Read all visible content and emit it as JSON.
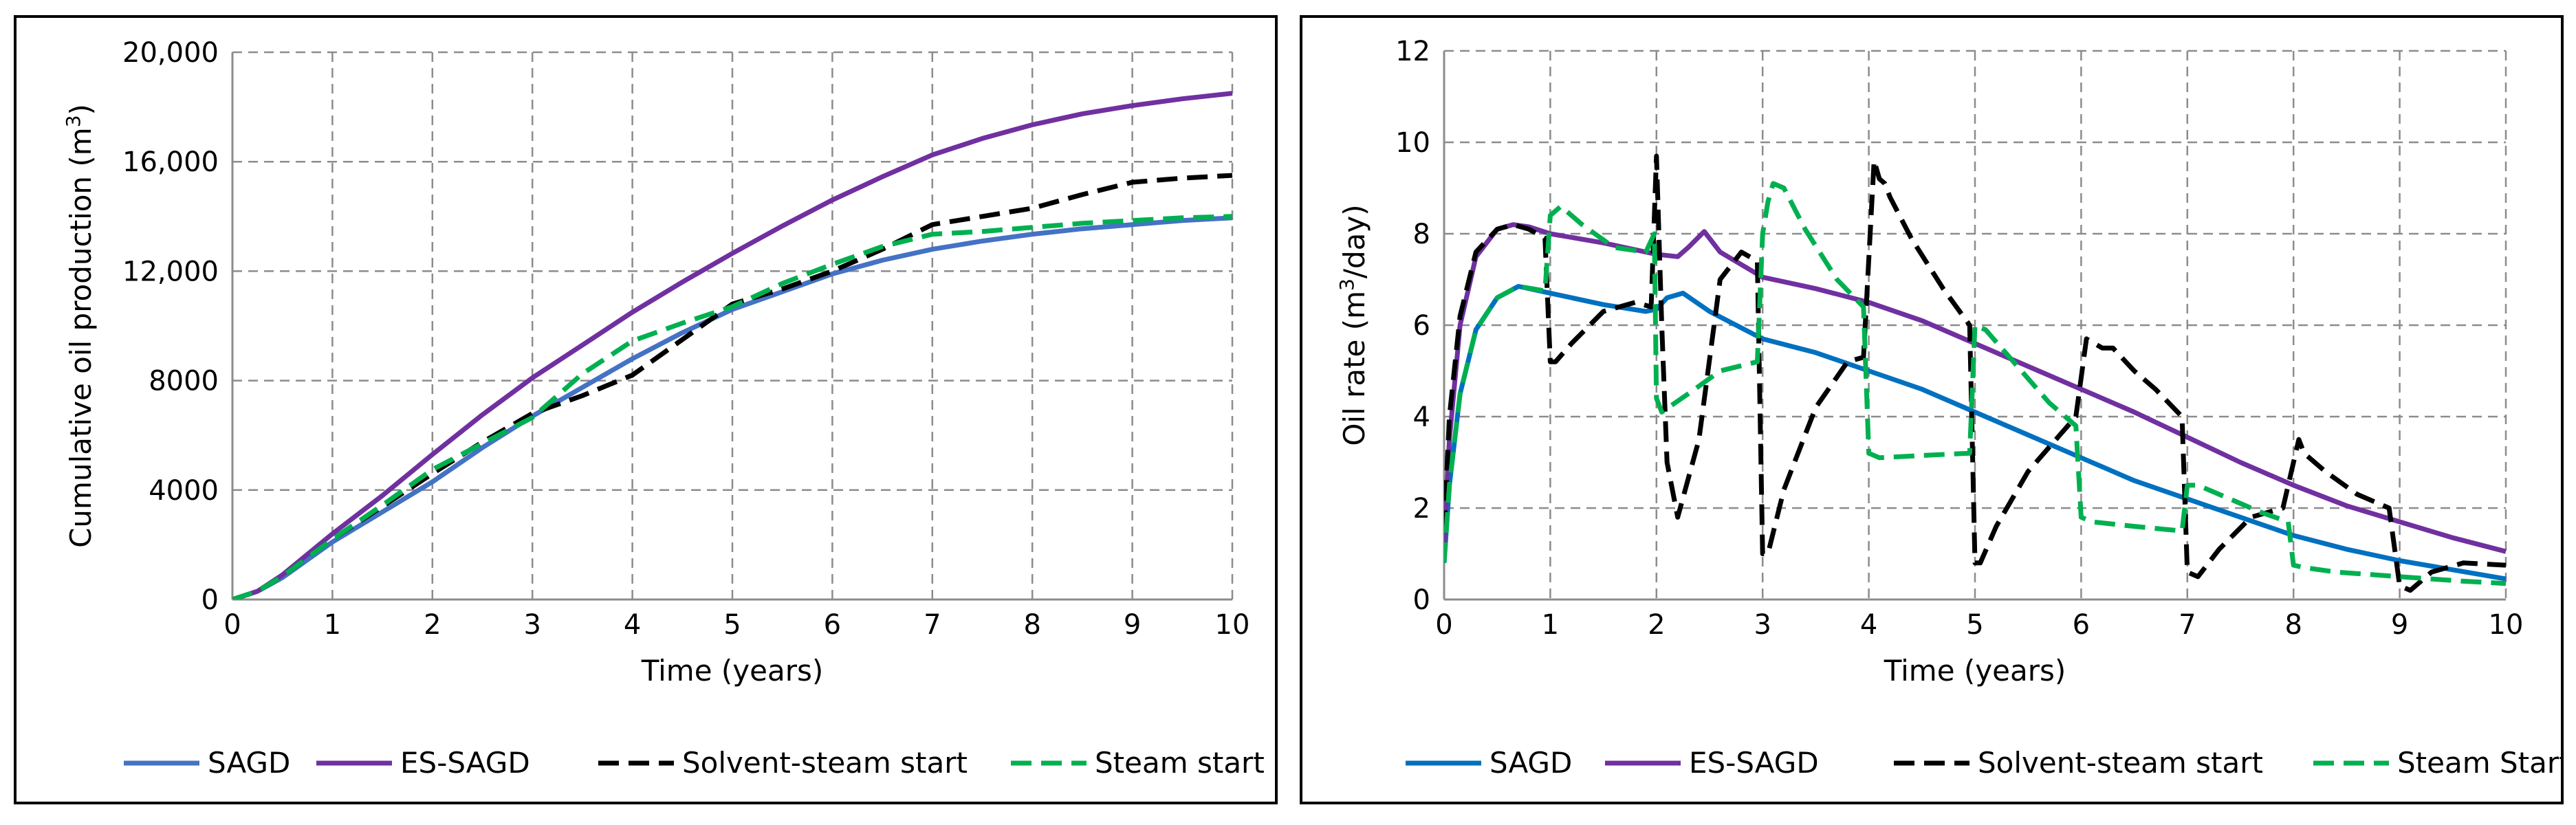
{
  "chart_data": [
    {
      "type": "line",
      "xlabel": "Time (years)",
      "ylabel": "Cumulative oil production (m",
      "ylabel_sup": "3",
      "ylabel_tail": ")",
      "xlim": [
        0,
        10
      ],
      "ylim": [
        0,
        20000
      ],
      "x_ticks": [
        "0",
        "1",
        "2",
        "3",
        "4",
        "5",
        "6",
        "7",
        "8",
        "9",
        "10"
      ],
      "y_ticks": [
        "0",
        "4000",
        "8000",
        "12,000",
        "16,000",
        "20,000"
      ],
      "series": [
        {
          "name": "SAGD",
          "color": "#4472C4",
          "dash": "solid",
          "x": [
            0,
            0.25,
            0.5,
            1,
            1.5,
            2,
            2.5,
            3,
            3.5,
            4,
            4.5,
            5,
            5.5,
            6,
            6.5,
            7,
            7.5,
            8,
            8.5,
            9,
            9.5,
            10
          ],
          "y": [
            0,
            300,
            800,
            2100,
            3200,
            4300,
            5550,
            6700,
            7750,
            8800,
            9750,
            10600,
            11250,
            11900,
            12400,
            12800,
            13100,
            13350,
            13550,
            13700,
            13850,
            13950
          ]
        },
        {
          "name": "ES-SAGD",
          "color": "#7030A0",
          "dash": "solid",
          "x": [
            0,
            0.25,
            0.5,
            1,
            1.5,
            2,
            2.5,
            3,
            3.5,
            4,
            4.5,
            5,
            5.5,
            6,
            6.5,
            7,
            7.5,
            8,
            8.5,
            9,
            9.5,
            10
          ],
          "y": [
            0,
            300,
            900,
            2400,
            3800,
            5300,
            6750,
            8100,
            9300,
            10500,
            11600,
            12650,
            13650,
            14600,
            15450,
            16250,
            16850,
            17350,
            17750,
            18050,
            18300,
            18500
          ]
        },
        {
          "name": "Solvent-steam start",
          "color": "#000000",
          "dash": "long",
          "x": [
            0,
            0.25,
            0.5,
            1,
            1.5,
            2,
            2.5,
            3,
            3.5,
            4,
            4.5,
            5,
            5.5,
            6,
            6.5,
            7,
            7.5,
            8,
            8.5,
            9,
            9.5,
            10
          ],
          "y": [
            0,
            300,
            850,
            2200,
            3400,
            4600,
            5750,
            6800,
            7450,
            8200,
            9500,
            10800,
            11350,
            12000,
            12800,
            13700,
            14000,
            14300,
            14800,
            15250,
            15400,
            15500
          ]
        },
        {
          "name": "Steam start",
          "color": "#00B050",
          "dash": "long",
          "x": [
            0,
            0.25,
            0.5,
            1,
            1.5,
            2,
            2.5,
            3,
            3.5,
            4,
            4.5,
            5,
            5.5,
            6,
            6.5,
            7,
            7.5,
            8,
            8.5,
            9,
            9.5,
            10
          ],
          "y": [
            0,
            300,
            850,
            2200,
            3450,
            4750,
            5700,
            6650,
            8250,
            9450,
            10100,
            10700,
            11550,
            12250,
            12900,
            13350,
            13450,
            13600,
            13750,
            13850,
            13950,
            14000
          ]
        }
      ]
    },
    {
      "type": "line",
      "xlabel": "Time (years)",
      "ylabel": "Oil rate (m",
      "ylabel_sup": "3",
      "ylabel_tail": "/day)",
      "xlim": [
        0,
        10
      ],
      "ylim": [
        0,
        12
      ],
      "x_ticks": [
        "0",
        "1",
        "2",
        "3",
        "4",
        "5",
        "6",
        "7",
        "8",
        "9",
        "10"
      ],
      "y_ticks": [
        "0",
        "2",
        "4",
        "6",
        "8",
        "10",
        "12"
      ],
      "series": [
        {
          "name": "SAGD",
          "color": "#0070C0",
          "dash": "solid",
          "x": [
            0,
            0.05,
            0.15,
            0.3,
            0.5,
            0.7,
            1.0,
            1.5,
            1.9,
            2.0,
            2.1,
            2.25,
            2.5,
            3.0,
            3.5,
            4.0,
            4.5,
            5.0,
            5.5,
            6.0,
            6.5,
            7.0,
            7.5,
            8.0,
            8.5,
            9.0,
            9.5,
            10.0
          ],
          "y": [
            0.8,
            2.5,
            4.5,
            5.9,
            6.6,
            6.85,
            6.7,
            6.45,
            6.3,
            6.35,
            6.6,
            6.7,
            6.3,
            5.7,
            5.4,
            5.0,
            4.6,
            4.1,
            3.6,
            3.1,
            2.6,
            2.2,
            1.8,
            1.4,
            1.1,
            0.85,
            0.65,
            0.45
          ]
        },
        {
          "name": "ES-SAGD",
          "color": "#7030A0",
          "dash": "solid",
          "x": [
            0,
            0.05,
            0.15,
            0.3,
            0.5,
            0.65,
            0.8,
            1.0,
            1.5,
            2.0,
            2.2,
            2.3,
            2.45,
            2.6,
            3.0,
            3.5,
            4.0,
            4.5,
            5.0,
            5.5,
            6.0,
            6.5,
            7.0,
            7.5,
            8.0,
            8.5,
            9.0,
            9.5,
            10.0
          ],
          "y": [
            1.2,
            3.5,
            6.0,
            7.5,
            8.1,
            8.2,
            8.15,
            8.0,
            7.8,
            7.55,
            7.5,
            7.7,
            8.05,
            7.6,
            7.05,
            6.8,
            6.5,
            6.1,
            5.6,
            5.1,
            4.6,
            4.1,
            3.55,
            3.0,
            2.5,
            2.05,
            1.7,
            1.35,
            1.05
          ]
        },
        {
          "name": "Solvent-steam start",
          "color": "#000000",
          "dash": "long",
          "x": [
            0,
            0.05,
            0.15,
            0.3,
            0.5,
            0.65,
            0.8,
            0.95,
            1.0,
            1.05,
            1.2,
            1.5,
            1.8,
            1.95,
            2.0,
            2.05,
            2.1,
            2.2,
            2.4,
            2.6,
            2.8,
            2.95,
            3.0,
            3.05,
            3.2,
            3.5,
            3.8,
            3.95,
            4.05,
            4.1,
            4.15,
            4.2,
            4.4,
            4.7,
            4.95,
            5.0,
            5.05,
            5.2,
            5.5,
            5.8,
            5.95,
            6.05,
            6.2,
            6.3,
            6.5,
            6.7,
            6.95,
            7.0,
            7.1,
            7.3,
            7.6,
            7.9,
            8.0,
            8.05,
            8.1,
            8.3,
            8.6,
            8.9,
            9.0,
            9.1,
            9.3,
            9.6,
            10.0
          ],
          "y": [
            1.5,
            4.0,
            6.2,
            7.6,
            8.1,
            8.2,
            8.1,
            7.9,
            5.2,
            5.2,
            5.6,
            6.3,
            6.5,
            6.4,
            9.7,
            6.0,
            3.0,
            1.8,
            3.5,
            7.0,
            7.6,
            7.4,
            1.0,
            1.0,
            2.4,
            4.2,
            5.2,
            5.3,
            9.6,
            9.2,
            9.1,
            8.8,
            7.9,
            6.8,
            6.0,
            0.8,
            0.8,
            1.6,
            2.8,
            3.6,
            4.0,
            5.7,
            5.5,
            5.5,
            5.0,
            4.6,
            4.0,
            0.6,
            0.5,
            1.1,
            1.8,
            2.0,
            3.0,
            3.5,
            3.2,
            2.8,
            2.3,
            2.0,
            0.3,
            0.2,
            0.6,
            0.8,
            0.75
          ]
        },
        {
          "name": "Steam Start",
          "color": "#00B050",
          "dash": "long",
          "x": [
            0,
            0.05,
            0.15,
            0.3,
            0.5,
            0.7,
            0.95,
            1.0,
            1.1,
            1.3,
            1.6,
            1.9,
            1.98,
            2.0,
            2.05,
            2.3,
            2.6,
            2.95,
            3.0,
            3.05,
            3.1,
            3.2,
            3.4,
            3.7,
            3.95,
            4.0,
            4.1,
            4.5,
            4.95,
            5.0,
            5.1,
            5.4,
            5.7,
            5.95,
            6.0,
            6.1,
            6.5,
            6.95,
            7.0,
            7.1,
            7.4,
            7.7,
            7.95,
            8.0,
            8.1,
            8.4,
            8.7,
            9.0,
            9.3,
            9.6,
            10.0
          ],
          "y": [
            0.8,
            2.5,
            4.5,
            5.9,
            6.6,
            6.85,
            6.75,
            8.4,
            8.6,
            8.2,
            7.7,
            7.6,
            8.0,
            4.4,
            4.1,
            4.5,
            5.0,
            5.2,
            8.0,
            8.7,
            9.1,
            9.0,
            8.1,
            7.0,
            6.4,
            3.2,
            3.1,
            3.15,
            3.2,
            6.0,
            5.9,
            5.1,
            4.3,
            3.8,
            1.8,
            1.7,
            1.6,
            1.5,
            2.5,
            2.5,
            2.2,
            1.9,
            1.7,
            0.75,
            0.7,
            0.6,
            0.55,
            0.5,
            0.45,
            0.4,
            0.35
          ]
        }
      ]
    }
  ]
}
